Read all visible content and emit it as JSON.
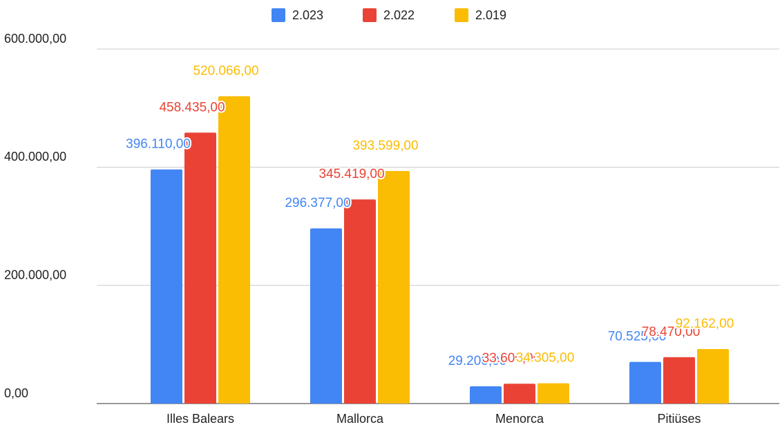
{
  "chart_data": {
    "type": "bar",
    "categories": [
      "Illes Balears",
      "Mallorca",
      "Menorca",
      "Pitiüses"
    ],
    "series": [
      {
        "name": "2.023",
        "color": "#4285f4",
        "values": [
          396110,
          296377,
          29200,
          70525
        ],
        "value_labels": [
          "396.110,00",
          "296.377,00",
          "29.200,00",
          "70.525,00"
        ]
      },
      {
        "name": "2.022",
        "color": "#ea4335",
        "values": [
          458435,
          345419,
          33600,
          78470
        ],
        "value_labels": [
          "458.435,00",
          "345.419,00",
          "33.600,00",
          "78.470,00"
        ]
      },
      {
        "name": "2.019",
        "color": "#fbbc04",
        "values": [
          520066,
          393599,
          34305,
          92162
        ],
        "value_labels": [
          "520.066,00",
          "393.599,00",
          "34.305,00",
          "92.162,00"
        ]
      }
    ],
    "ylim": [
      0,
      600000
    ],
    "yticks": [
      {
        "value": 0,
        "label": "0,00"
      },
      {
        "value": 200000,
        "label": "200.000,00"
      },
      {
        "value": 400000,
        "label": "400.000,00"
      },
      {
        "value": 600000,
        "label": "600.000,00"
      }
    ],
    "grid": true,
    "legend": "top"
  }
}
